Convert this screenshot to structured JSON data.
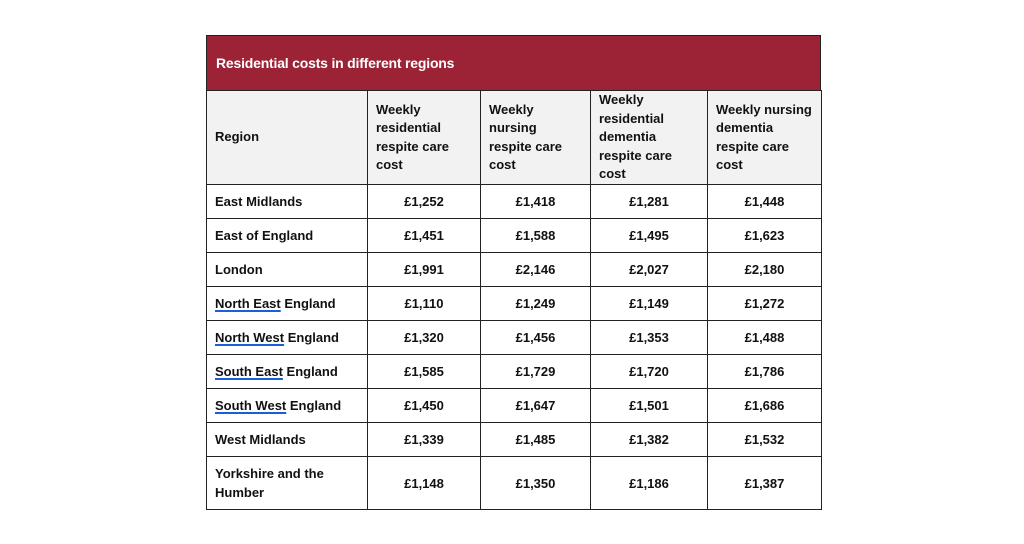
{
  "title": "Residential costs in different regions",
  "columns": [
    "Region",
    "Weekly residential respite care cost",
    "Weekly nursing respite care cost",
    "Weekly residential dementia respite care cost",
    "Weekly nursing dementia respite care cost"
  ],
  "rows": [
    {
      "region_marked": "",
      "region_rest": "East Midlands",
      "values": [
        "£1,252",
        "£1,418",
        "£1,281",
        "£1,448"
      ]
    },
    {
      "region_marked": "",
      "region_rest": "East of England",
      "values": [
        "£1,451",
        "£1,588",
        "£1,495",
        "£1,623"
      ]
    },
    {
      "region_marked": "",
      "region_rest": "London",
      "values": [
        "£1,991",
        "£2,146",
        "£2,027",
        "£2,180"
      ]
    },
    {
      "region_marked": "North East",
      "region_rest": " England",
      "values": [
        "£1,110",
        "£1,249",
        "£1,149",
        "£1,272"
      ]
    },
    {
      "region_marked": "North West",
      "region_rest": " England",
      "values": [
        "£1,320",
        "£1,456",
        "£1,353",
        "£1,488"
      ]
    },
    {
      "region_marked": "South East",
      "region_rest": " England",
      "values": [
        "£1,585",
        "£1,729",
        "£1,720",
        "£1,786"
      ]
    },
    {
      "region_marked": "South West",
      "region_rest": " England",
      "values": [
        "£1,450",
        "£1,647",
        "£1,501",
        "£1,686"
      ]
    },
    {
      "region_marked": "",
      "region_rest": "West Midlands",
      "values": [
        "£1,339",
        "£1,485",
        "£1,382",
        "£1,532"
      ]
    },
    {
      "region_marked": "",
      "region_rest": "Yorkshire and the Humber",
      "values": [
        "£1,148",
        "£1,350",
        "£1,186",
        "£1,387"
      ]
    }
  ],
  "colors": {
    "title_bg": "#9b2335",
    "header_bg": "#f2f2f2",
    "spellcheck_underline": "#1a5fd8"
  }
}
